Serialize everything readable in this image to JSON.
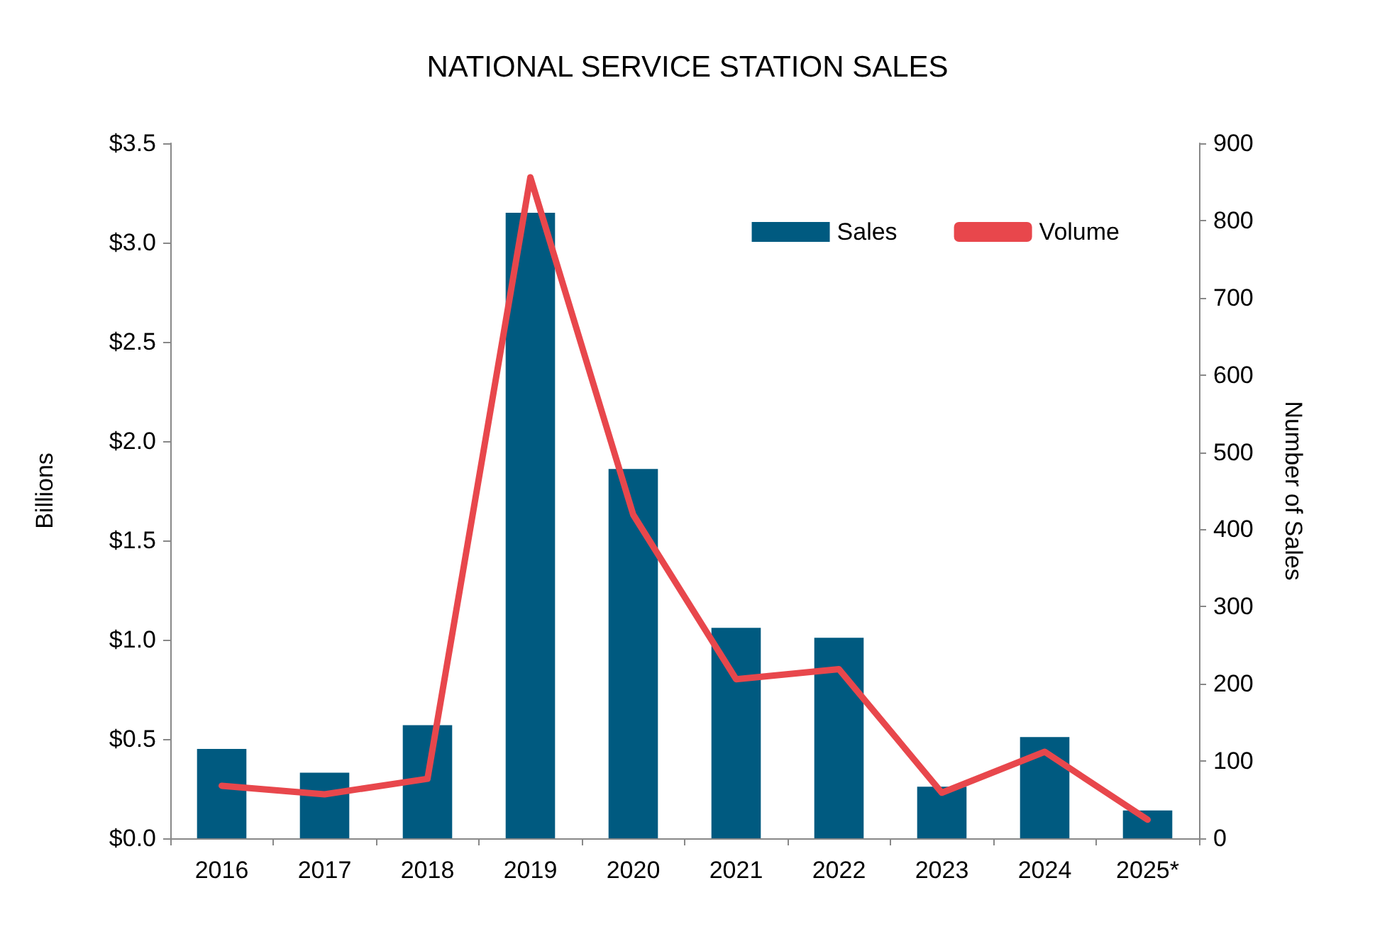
{
  "chart_data": {
    "type": "bar",
    "title": "NATIONAL SERVICE STATION SALES",
    "ylabel": "Billions",
    "y2label": "Number of Sales",
    "categories": [
      "2016",
      "2017",
      "2018",
      "2019",
      "2020",
      "2021",
      "2022",
      "2023",
      "2024",
      "2025*"
    ],
    "series": [
      {
        "name": "Sales",
        "color": "#005a80",
        "values": [
          0.45,
          0.33,
          0.57,
          3.15,
          1.86,
          1.06,
          1.01,
          0.26,
          0.51,
          0.14
        ]
      },
      {
        "name": "Volume",
        "type": "line",
        "axis": "y2",
        "color": "#e8474c",
        "marker": "none",
        "values": [
          68,
          57,
          77,
          856,
          419,
          206,
          219,
          59,
          112,
          24
        ]
      }
    ],
    "ylim": [
      0,
      3.5
    ],
    "yticks": [
      {
        "value": 0,
        "label": "$0.0"
      },
      {
        "value": 0.5,
        "label": "$0.5"
      },
      {
        "value": 1,
        "label": "$1.0"
      },
      {
        "value": 1.5,
        "label": "$1.5"
      },
      {
        "value": 2,
        "label": "$2.0"
      },
      {
        "value": 2.5,
        "label": "$2.5"
      },
      {
        "value": 3,
        "label": "$3.0"
      },
      {
        "value": 3.5,
        "label": "$3.5"
      }
    ],
    "y2lim": [
      0,
      900
    ],
    "y2ticks": [
      0,
      100,
      200,
      300,
      400,
      500,
      600,
      700,
      800,
      900
    ],
    "grid": false,
    "legend": "top right"
  }
}
